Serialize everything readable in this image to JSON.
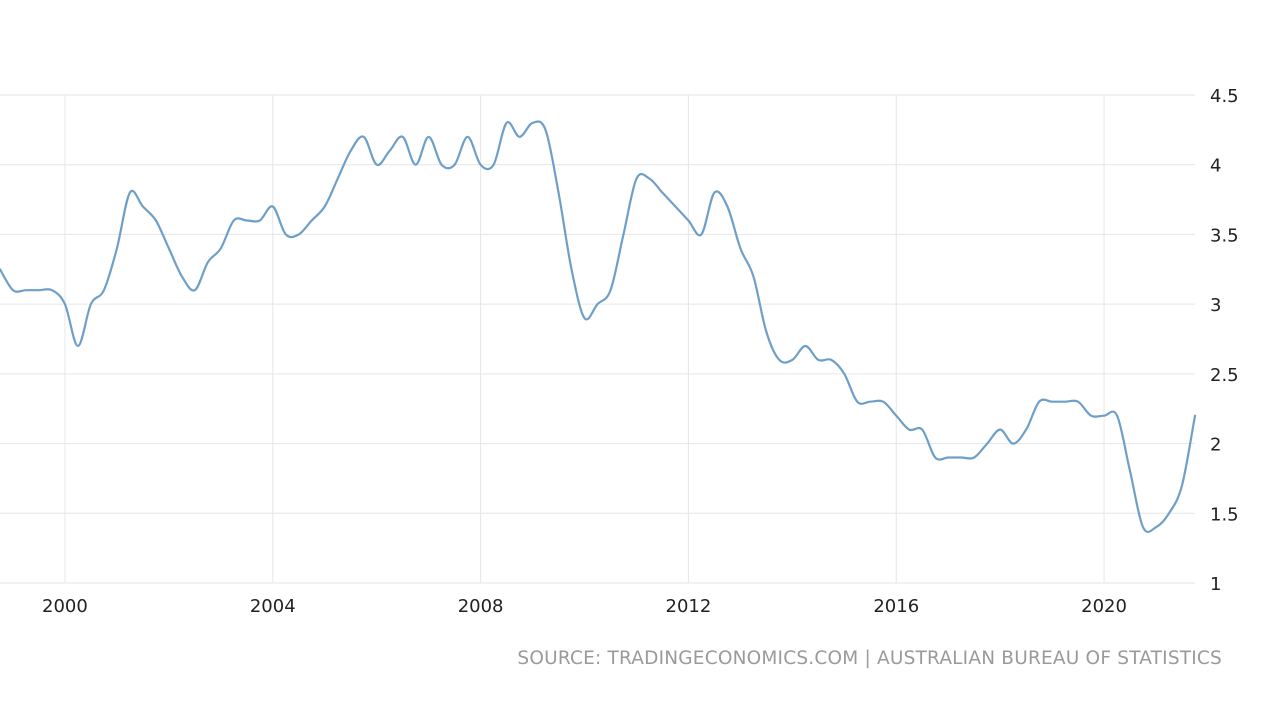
{
  "chart_data": {
    "type": "line",
    "title": "",
    "xlabel": "",
    "ylabel": "",
    "xlim": [
      1998.75,
      2021.75
    ],
    "ylim": [
      1,
      4.5
    ],
    "x_ticks": [
      2000,
      2004,
      2008,
      2012,
      2016,
      2020
    ],
    "x_tick_labels": [
      "2000",
      "2004",
      "2008",
      "2012",
      "2016",
      "2020"
    ],
    "y_ticks": [
      1,
      1.5,
      2,
      2.5,
      3,
      3.5,
      4,
      4.5
    ],
    "y_tick_labels": [
      "1",
      "1.5",
      "2",
      "2.5",
      "3",
      "3.5",
      "4",
      "4.5"
    ],
    "grid": true,
    "legend": "none",
    "line_color": "#6f9fc8",
    "grid_color": "#e6e6e6",
    "series": [
      {
        "x": [
          1998.75,
          1999.0,
          1999.25,
          1999.5,
          1999.75,
          2000.0,
          2000.25,
          2000.5,
          2000.75,
          2001.0,
          2001.25,
          2001.5,
          2001.75,
          2002.0,
          2002.25,
          2002.5,
          2002.75,
          2003.0,
          2003.25,
          2003.5,
          2003.75,
          2004.0,
          2004.25,
          2004.5,
          2004.75,
          2005.0,
          2005.25,
          2005.5,
          2005.75,
          2006.0,
          2006.25,
          2006.5,
          2006.75,
          2007.0,
          2007.25,
          2007.5,
          2007.75,
          2008.0,
          2008.25,
          2008.5,
          2008.75,
          2009.0,
          2009.25,
          2009.5,
          2009.75,
          2010.0,
          2010.25,
          2010.5,
          2010.75,
          2011.0,
          2011.25,
          2011.5,
          2011.75,
          2012.0,
          2012.25,
          2012.5,
          2012.75,
          2013.0,
          2013.25,
          2013.5,
          2013.75,
          2014.0,
          2014.25,
          2014.5,
          2014.75,
          2015.0,
          2015.25,
          2015.5,
          2015.75,
          2016.0,
          2016.25,
          2016.5,
          2016.75,
          2017.0,
          2017.25,
          2017.5,
          2017.75,
          2018.0,
          2018.25,
          2018.5,
          2018.75,
          2019.0,
          2019.25,
          2019.5,
          2019.75,
          2020.0,
          2020.25,
          2020.5,
          2020.75,
          2021.0,
          2021.25,
          2021.5,
          2021.75
        ],
        "values": [
          3.25,
          3.1,
          3.1,
          3.1,
          3.1,
          3.0,
          2.7,
          3.0,
          3.1,
          3.4,
          3.8,
          3.7,
          3.6,
          3.4,
          3.2,
          3.1,
          3.3,
          3.4,
          3.6,
          3.6,
          3.6,
          3.7,
          3.5,
          3.5,
          3.6,
          3.7,
          3.9,
          4.1,
          4.2,
          4.0,
          4.1,
          4.2,
          4.0,
          4.2,
          4.0,
          4.0,
          4.2,
          4.0,
          4.0,
          4.3,
          4.2,
          4.3,
          4.25,
          3.8,
          3.25,
          2.9,
          3.0,
          3.1,
          3.5,
          3.9,
          3.9,
          3.8,
          3.7,
          3.6,
          3.5,
          3.8,
          3.7,
          3.4,
          3.2,
          2.8,
          2.6,
          2.6,
          2.7,
          2.6,
          2.6,
          2.5,
          2.3,
          2.3,
          2.3,
          2.2,
          2.1,
          2.1,
          1.9,
          1.9,
          1.9,
          1.9,
          2.0,
          2.1,
          2.0,
          2.1,
          2.3,
          2.3,
          2.3,
          2.3,
          2.2,
          2.2,
          2.2,
          1.8,
          1.4,
          1.4,
          1.5,
          1.7,
          2.2
        ]
      }
    ]
  },
  "source_text": "SOURCE: TRADINGECONOMICS.COM | AUSTRALIAN BUREAU OF STATISTICS"
}
